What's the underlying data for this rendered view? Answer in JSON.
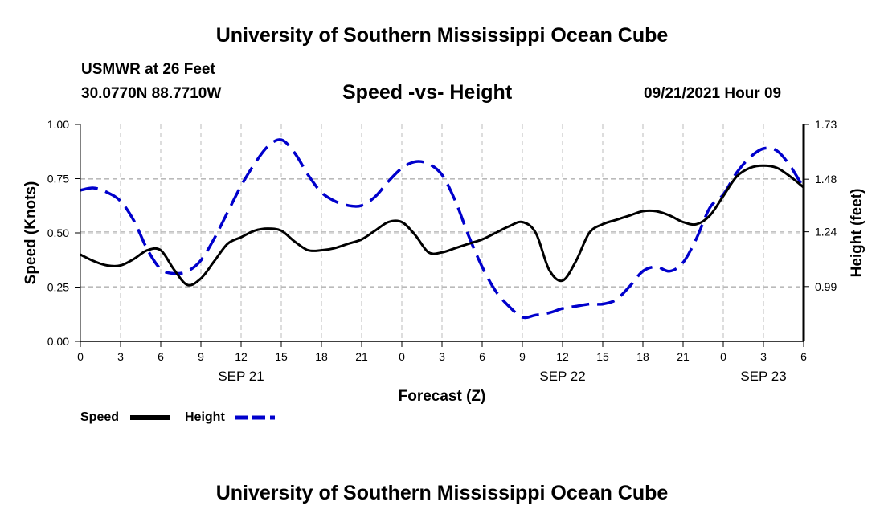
{
  "header": {
    "title_top": "University of Southern Mississippi Ocean Cube",
    "station": "USMWR at 26 Feet",
    "coords": "30.0770N  88.7710W",
    "subtitle": "Speed -vs- Height",
    "datetime": "09/21/2021 Hour 09",
    "title_bottom": "University of Southern Mississippi Ocean Cube"
  },
  "colors": {
    "speed": "#000000",
    "height": "#0000cc",
    "grid": "#bbbbbb"
  },
  "chart_data": {
    "type": "line",
    "title": "Speed -vs- Height",
    "xlabel": "Forecast (Z)",
    "ylabel": "Speed (Knots)",
    "y2label": "Height (feet)",
    "xlim": [
      0,
      54
    ],
    "ylim": [
      0,
      1.0
    ],
    "y2lim": [
      0.74,
      1.73
    ],
    "grid": true,
    "legend_position": "bottom-left",
    "x_ticks": [
      0,
      3,
      6,
      9,
      12,
      15,
      18,
      21,
      24,
      27,
      30,
      33,
      36,
      39,
      42,
      45,
      48,
      51,
      54
    ],
    "x_tick_labels": [
      "0",
      "3",
      "6",
      "9",
      "12",
      "15",
      "18",
      "21",
      "0",
      "3",
      "6",
      "9",
      "12",
      "15",
      "18",
      "21",
      "0",
      "3",
      "6"
    ],
    "y_ticks": [
      0,
      0.25,
      0.5,
      0.75,
      1.0
    ],
    "y_tick_labels": [
      "0.00",
      "0.25",
      "0.50",
      "0.75",
      "1.00"
    ],
    "y2_ticks": [
      0.99,
      1.24,
      1.48,
      1.73
    ],
    "y2_tick_labels": [
      "0.99",
      "1.24",
      "1.48",
      "1.73"
    ],
    "date_labels": [
      {
        "x": 12,
        "label": "SEP 21"
      },
      {
        "x": 36,
        "label": "SEP 22"
      },
      {
        "x": 51,
        "label": "SEP 23"
      }
    ],
    "series": [
      {
        "name": "Speed",
        "axis": "left",
        "style": "solid",
        "x": [
          0,
          1,
          2,
          3,
          4,
          5,
          6,
          7,
          8,
          9,
          10,
          11,
          12,
          13,
          14,
          15,
          16,
          17,
          18,
          19,
          20,
          21,
          22,
          23,
          24,
          25,
          26,
          27,
          28,
          29,
          30,
          31,
          32,
          33,
          34,
          35,
          36,
          37,
          38,
          39,
          40,
          41,
          42,
          43,
          44,
          45,
          46,
          47,
          48,
          49,
          50,
          51,
          52,
          53,
          54
        ],
        "values": [
          0.4,
          0.37,
          0.35,
          0.35,
          0.38,
          0.42,
          0.42,
          0.33,
          0.26,
          0.29,
          0.37,
          0.45,
          0.48,
          0.51,
          0.52,
          0.51,
          0.46,
          0.42,
          0.42,
          0.43,
          0.45,
          0.47,
          0.51,
          0.55,
          0.55,
          0.49,
          0.41,
          0.41,
          0.43,
          0.45,
          0.47,
          0.5,
          0.53,
          0.55,
          0.5,
          0.33,
          0.28,
          0.37,
          0.5,
          0.54,
          0.56,
          0.58,
          0.6,
          0.6,
          0.58,
          0.55,
          0.54,
          0.58,
          0.67,
          0.76,
          0.8,
          0.81,
          0.8,
          0.76,
          0.71
        ]
      },
      {
        "name": "Height",
        "axis": "right",
        "style": "dashed",
        "x": [
          0,
          1,
          2,
          3,
          4,
          5,
          6,
          7,
          8,
          9,
          10,
          11,
          12,
          13,
          14,
          15,
          16,
          17,
          18,
          19,
          20,
          21,
          22,
          23,
          24,
          25,
          26,
          27,
          28,
          29,
          30,
          31,
          32,
          33,
          34,
          35,
          36,
          37,
          38,
          39,
          40,
          41,
          42,
          43,
          44,
          45,
          46,
          47,
          48,
          49,
          50,
          51,
          52,
          53,
          54
        ],
        "values": [
          1.43,
          1.44,
          1.42,
          1.38,
          1.29,
          1.16,
          1.07,
          1.05,
          1.06,
          1.11,
          1.21,
          1.33,
          1.45,
          1.55,
          1.63,
          1.66,
          1.6,
          1.5,
          1.42,
          1.38,
          1.36,
          1.36,
          1.4,
          1.47,
          1.53,
          1.56,
          1.55,
          1.5,
          1.38,
          1.22,
          1.08,
          0.97,
          0.9,
          0.85,
          0.86,
          0.87,
          0.89,
          0.9,
          0.91,
          0.91,
          0.93,
          0.99,
          1.06,
          1.08,
          1.06,
          1.1,
          1.21,
          1.35,
          1.41,
          1.51,
          1.58,
          1.62,
          1.61,
          1.54,
          1.44
        ]
      }
    ]
  }
}
